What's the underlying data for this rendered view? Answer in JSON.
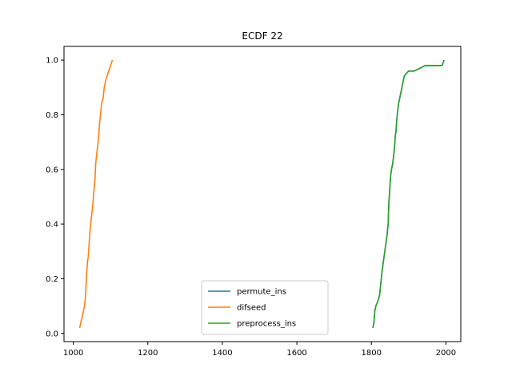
{
  "chart_data": {
    "type": "line",
    "title": "ECDF 22",
    "xlabel": "",
    "ylabel": "",
    "xlim": [
      975,
      2040
    ],
    "ylim": [
      -0.03,
      1.05
    ],
    "x_ticks": [
      1000,
      1200,
      1400,
      1600,
      1800,
      2000
    ],
    "y_ticks": [
      0.0,
      0.2,
      0.4,
      0.6,
      0.8,
      1.0
    ],
    "x_tick_labels": [
      "1000",
      "1200",
      "1400",
      "1600",
      "1800",
      "2000"
    ],
    "y_tick_labels": [
      "0.0",
      "0.2",
      "0.4",
      "0.6",
      "0.8",
      "1.0"
    ],
    "grid": false,
    "legend_position": "lower center",
    "series": [
      {
        "name": "permute_ins",
        "color": "#1f77b4",
        "x": [
          1804,
          1807,
          1809,
          1812,
          1818,
          1822,
          1825,
          1828,
          1832,
          1836,
          1840,
          1842,
          1845,
          1847,
          1850,
          1852,
          1854,
          1857,
          1859,
          1862,
          1864,
          1866,
          1868,
          1871,
          1873,
          1876,
          1879,
          1882,
          1885,
          1888,
          1893,
          1900,
          1915,
          1945,
          1990,
          1995
        ],
        "y": [
          0.02,
          0.04,
          0.08,
          0.1,
          0.12,
          0.14,
          0.18,
          0.22,
          0.26,
          0.3,
          0.34,
          0.36,
          0.4,
          0.48,
          0.54,
          0.58,
          0.6,
          0.62,
          0.64,
          0.68,
          0.72,
          0.74,
          0.78,
          0.82,
          0.84,
          0.86,
          0.88,
          0.9,
          0.92,
          0.94,
          0.95,
          0.96,
          0.96,
          0.98,
          0.98,
          1.0
        ]
      },
      {
        "name": "difseed",
        "color": "#ff7f0e",
        "x": [
          1017,
          1020,
          1024,
          1027,
          1030,
          1033,
          1035,
          1038,
          1040,
          1042,
          1045,
          1048,
          1050,
          1053,
          1055,
          1058,
          1060,
          1063,
          1065,
          1068,
          1070,
          1073,
          1076,
          1080,
          1083,
          1086,
          1090,
          1095,
          1100,
          1105
        ],
        "y": [
          0.02,
          0.04,
          0.06,
          0.08,
          0.1,
          0.14,
          0.2,
          0.26,
          0.28,
          0.32,
          0.38,
          0.42,
          0.44,
          0.48,
          0.52,
          0.56,
          0.62,
          0.66,
          0.68,
          0.72,
          0.76,
          0.8,
          0.84,
          0.86,
          0.9,
          0.92,
          0.94,
          0.96,
          0.98,
          1.0
        ]
      },
      {
        "name": "preprocess_ins",
        "color": "#2ca02c",
        "x": [
          1804,
          1807,
          1809,
          1812,
          1818,
          1822,
          1825,
          1828,
          1832,
          1836,
          1840,
          1842,
          1845,
          1847,
          1850,
          1852,
          1854,
          1857,
          1859,
          1862,
          1864,
          1866,
          1868,
          1871,
          1873,
          1876,
          1879,
          1882,
          1885,
          1888,
          1893,
          1900,
          1915,
          1945,
          1990,
          1995
        ],
        "y": [
          0.02,
          0.04,
          0.08,
          0.1,
          0.12,
          0.14,
          0.18,
          0.22,
          0.26,
          0.3,
          0.34,
          0.36,
          0.4,
          0.48,
          0.54,
          0.58,
          0.6,
          0.62,
          0.64,
          0.68,
          0.72,
          0.74,
          0.78,
          0.82,
          0.84,
          0.86,
          0.88,
          0.9,
          0.92,
          0.94,
          0.95,
          0.96,
          0.96,
          0.98,
          0.98,
          1.0
        ]
      }
    ]
  }
}
